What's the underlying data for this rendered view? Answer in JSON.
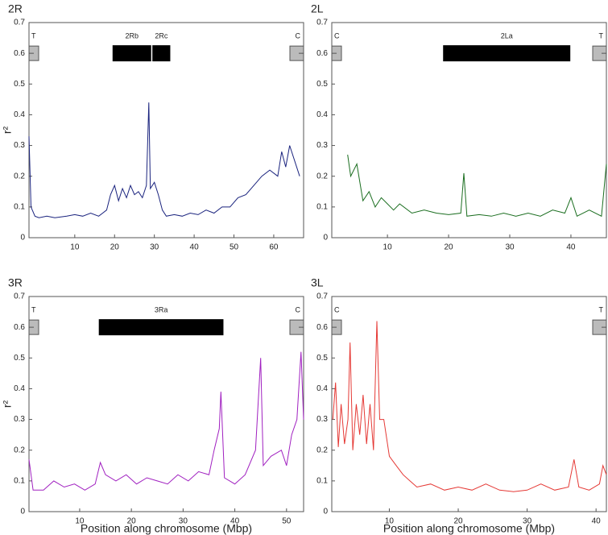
{
  "chart_data": [
    {
      "type": "line",
      "title": "2R",
      "ylabel": "r²",
      "xlim": [
        -1.5,
        67.5
      ],
      "ylim": [
        0,
        0.7
      ],
      "xticks": [
        10,
        20,
        30,
        40,
        50,
        60
      ],
      "yticks": [
        0,
        0.1,
        0.2,
        0.3,
        0.4,
        0.5,
        0.6,
        0.7
      ],
      "end_labels": [
        "T",
        "C"
      ],
      "annotations": [
        {
          "label": "2Rb",
          "x": [
            19.5,
            29.2
          ]
        },
        {
          "label": "2Rc",
          "x": [
            29.5,
            34
          ]
        }
      ],
      "x": [
        -1.5,
        -1,
        0,
        1,
        3,
        5,
        8,
        10,
        12,
        14,
        16,
        18,
        19,
        20,
        21,
        22,
        23,
        24,
        25,
        26,
        27,
        28,
        28.6,
        29,
        30,
        31,
        32,
        33,
        35,
        37,
        39,
        41,
        43,
        45,
        47,
        49,
        51,
        53,
        55,
        57,
        59,
        61,
        62,
        63,
        64,
        66.5
      ],
      "series": [
        {
          "color": "#1a237e",
          "values": [
            0.33,
            0.1,
            0.07,
            0.065,
            0.07,
            0.065,
            0.07,
            0.075,
            0.07,
            0.08,
            0.07,
            0.09,
            0.14,
            0.17,
            0.12,
            0.16,
            0.13,
            0.17,
            0.14,
            0.15,
            0.13,
            0.17,
            0.44,
            0.16,
            0.18,
            0.14,
            0.09,
            0.07,
            0.075,
            0.07,
            0.08,
            0.075,
            0.09,
            0.08,
            0.1,
            0.1,
            0.13,
            0.14,
            0.17,
            0.2,
            0.22,
            0.2,
            0.28,
            0.23,
            0.3,
            0.2
          ]
        }
      ]
    },
    {
      "type": "line",
      "title": "2L",
      "xlim": [
        0.9,
        45.8
      ],
      "ylim": [
        0,
        0.7
      ],
      "xticks": [
        10,
        20,
        30,
        40
      ],
      "yticks": [
        0,
        0.1,
        0.2,
        0.3,
        0.4,
        0.5,
        0.6,
        0.7
      ],
      "end_labels": [
        "C",
        "T"
      ],
      "annotations": [
        {
          "label": "2La",
          "x": [
            19.1,
            39.9
          ]
        }
      ],
      "x": [
        3.5,
        4,
        5,
        6,
        7,
        8,
        9,
        10,
        11,
        12,
        14,
        16,
        18,
        20,
        22,
        22.5,
        23,
        25,
        27,
        29,
        31,
        33,
        35,
        37,
        39,
        40,
        41,
        43,
        45,
        45.8
      ],
      "series": [
        {
          "color": "#1b6e20",
          "values": [
            0.27,
            0.2,
            0.24,
            0.12,
            0.15,
            0.1,
            0.13,
            0.11,
            0.09,
            0.11,
            0.08,
            0.09,
            0.08,
            0.075,
            0.08,
            0.21,
            0.07,
            0.075,
            0.07,
            0.08,
            0.07,
            0.08,
            0.07,
            0.09,
            0.08,
            0.13,
            0.07,
            0.09,
            0.07,
            0.24
          ]
        }
      ]
    },
    {
      "type": "line",
      "title": "3R",
      "ylabel": "r²",
      "xlabel": "Position along chromosome (Mbp)",
      "xlim": [
        0.2,
        53.3
      ],
      "ylim": [
        0,
        0.7
      ],
      "xticks": [
        10,
        20,
        30,
        40,
        50
      ],
      "yticks": [
        0,
        0.1,
        0.2,
        0.3,
        0.4,
        0.5,
        0.6,
        0.7
      ],
      "end_labels": [
        "T",
        "C"
      ],
      "annotations": [
        {
          "label": "3Ra",
          "x": [
            13.7,
            37.8
          ]
        }
      ],
      "x": [
        0.2,
        1,
        3,
        5,
        7,
        9,
        11,
        13,
        14,
        15,
        17,
        19,
        21,
        23,
        25,
        27,
        29,
        31,
        33,
        35,
        36,
        37,
        37.3,
        38,
        40,
        42,
        44,
        45,
        45.5,
        47,
        49,
        50,
        51,
        52,
        52.8,
        53.3
      ],
      "series": [
        {
          "color": "#a020c0",
          "values": [
            0.17,
            0.07,
            0.07,
            0.1,
            0.08,
            0.09,
            0.07,
            0.09,
            0.16,
            0.12,
            0.1,
            0.12,
            0.09,
            0.11,
            0.1,
            0.09,
            0.12,
            0.1,
            0.13,
            0.12,
            0.2,
            0.27,
            0.39,
            0.11,
            0.09,
            0.12,
            0.2,
            0.5,
            0.15,
            0.18,
            0.2,
            0.15,
            0.25,
            0.3,
            0.52,
            0.3
          ]
        }
      ]
    },
    {
      "type": "line",
      "title": "3L",
      "xlabel": "Position along chromosome (Mbp)",
      "xlim": [
        1.65,
        41.5
      ],
      "ylim": [
        0,
        0.7
      ],
      "xticks": [
        10,
        20,
        30,
        40
      ],
      "yticks": [
        0,
        0.1,
        0.2,
        0.3,
        0.4,
        0.5,
        0.6,
        0.7
      ],
      "end_labels": [
        "C",
        "T"
      ],
      "annotations": [],
      "x": [
        1.8,
        2.2,
        2.6,
        3,
        3.5,
        4,
        4.3,
        4.7,
        5.2,
        5.7,
        6.2,
        6.7,
        7.2,
        7.7,
        8.2,
        8.6,
        9.2,
        10,
        11,
        12,
        13,
        14,
        16,
        18,
        20,
        22,
        24,
        26,
        28,
        30,
        32,
        34,
        36,
        36.8,
        37.5,
        39,
        40.5,
        41,
        41.5
      ],
      "series": [
        {
          "color": "#e53935",
          "values": [
            0.3,
            0.42,
            0.21,
            0.35,
            0.22,
            0.3,
            0.55,
            0.2,
            0.35,
            0.25,
            0.38,
            0.22,
            0.35,
            0.2,
            0.62,
            0.3,
            0.3,
            0.18,
            0.15,
            0.12,
            0.1,
            0.08,
            0.09,
            0.07,
            0.08,
            0.07,
            0.09,
            0.07,
            0.065,
            0.07,
            0.09,
            0.07,
            0.08,
            0.17,
            0.08,
            0.07,
            0.09,
            0.15,
            0.12
          ]
        }
      ]
    }
  ]
}
